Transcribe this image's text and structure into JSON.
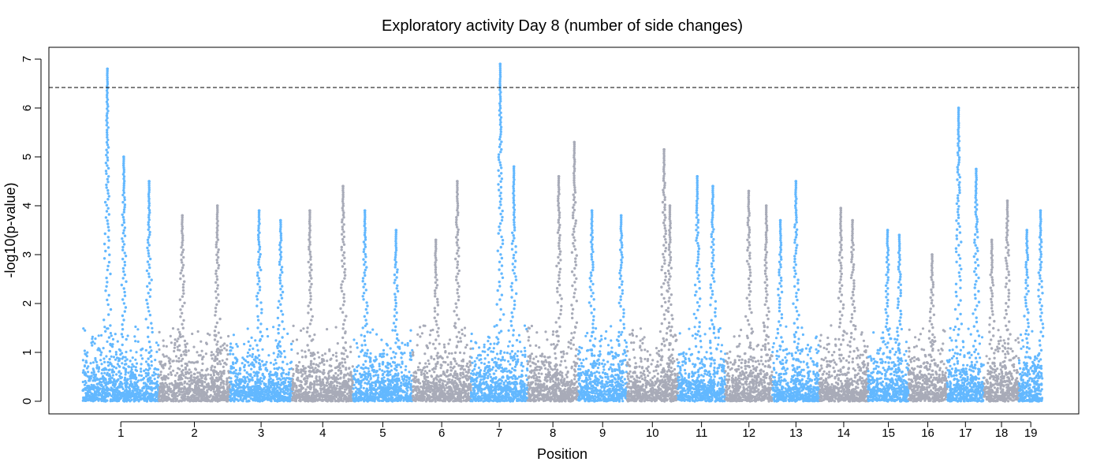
{
  "chart_data": {
    "type": "scatter",
    "subtype": "manhattan",
    "title": "Exploratory activity Day 8 (number of side changes)",
    "xlabel": "Position",
    "ylabel": "-log10(p-value)",
    "ylim": [
      0,
      7
    ],
    "yticks": [
      0,
      1,
      2,
      3,
      4,
      5,
      6,
      7
    ],
    "threshold": 6.42,
    "grid": false,
    "legend": "none",
    "colors": {
      "odd": "#63b8ff",
      "even": "#a8abb8",
      "threshold_line": "#000000"
    },
    "chromosomes": [
      {
        "label": "1",
        "start": 0,
        "end": 195,
        "color": "odd",
        "peaks": [
          {
            "pos": 63,
            "p": 6.8
          },
          {
            "pos": 105,
            "p": 5.0
          },
          {
            "pos": 170,
            "p": 4.5
          }
        ]
      },
      {
        "label": "2",
        "start": 195,
        "end": 377,
        "color": "even",
        "peaks": [
          {
            "pos": 60,
            "p": 3.8
          },
          {
            "pos": 150,
            "p": 4.0
          }
        ]
      },
      {
        "label": "3",
        "start": 377,
        "end": 537,
        "color": "odd",
        "peaks": [
          {
            "pos": 75,
            "p": 3.9
          },
          {
            "pos": 130,
            "p": 3.7
          }
        ]
      },
      {
        "label": "4",
        "start": 537,
        "end": 693,
        "color": "even",
        "peaks": [
          {
            "pos": 45,
            "p": 3.9
          },
          {
            "pos": 130,
            "p": 4.4
          }
        ]
      },
      {
        "label": "5",
        "start": 693,
        "end": 845,
        "color": "odd",
        "peaks": [
          {
            "pos": 30,
            "p": 3.9
          },
          {
            "pos": 110,
            "p": 3.5
          }
        ]
      },
      {
        "label": "6",
        "start": 845,
        "end": 995,
        "color": "even",
        "peaks": [
          {
            "pos": 115,
            "p": 4.5
          },
          {
            "pos": 60,
            "p": 3.3
          }
        ]
      },
      {
        "label": "7",
        "start": 995,
        "end": 1140,
        "color": "odd",
        "peaks": [
          {
            "pos": 75,
            "p": 6.9
          },
          {
            "pos": 110,
            "p": 4.8
          }
        ]
      },
      {
        "label": "8",
        "start": 1140,
        "end": 1270,
        "color": "even",
        "peaks": [
          {
            "pos": 80,
            "p": 4.6
          },
          {
            "pos": 120,
            "p": 5.3
          }
        ]
      },
      {
        "label": "9",
        "start": 1270,
        "end": 1395,
        "color": "odd",
        "peaks": [
          {
            "pos": 35,
            "p": 3.9
          },
          {
            "pos": 110,
            "p": 3.8
          }
        ]
      },
      {
        "label": "10",
        "start": 1395,
        "end": 1525,
        "color": "even",
        "peaks": [
          {
            "pos": 95,
            "p": 5.15
          },
          {
            "pos": 110,
            "p": 4.0
          }
        ]
      },
      {
        "label": "11",
        "start": 1525,
        "end": 1647,
        "color": "odd",
        "peaks": [
          {
            "pos": 50,
            "p": 4.6
          },
          {
            "pos": 90,
            "p": 4.4
          }
        ]
      },
      {
        "label": "12",
        "start": 1647,
        "end": 1768,
        "color": "even",
        "peaks": [
          {
            "pos": 60,
            "p": 4.3
          },
          {
            "pos": 105,
            "p": 4.0
          }
        ]
      },
      {
        "label": "13",
        "start": 1768,
        "end": 1888,
        "color": "odd",
        "peaks": [
          {
            "pos": 60,
            "p": 4.5
          },
          {
            "pos": 20,
            "p": 3.7
          }
        ]
      },
      {
        "label": "14",
        "start": 1888,
        "end": 2013,
        "color": "even",
        "peaks": [
          {
            "pos": 55,
            "p": 3.95
          },
          {
            "pos": 85,
            "p": 3.7
          }
        ]
      },
      {
        "label": "15",
        "start": 2013,
        "end": 2117,
        "color": "odd",
        "peaks": [
          {
            "pos": 50,
            "p": 3.5
          },
          {
            "pos": 80,
            "p": 3.4
          }
        ]
      },
      {
        "label": "16",
        "start": 2117,
        "end": 2215,
        "color": "even",
        "peaks": [
          {
            "pos": 60,
            "p": 3.0
          }
        ]
      },
      {
        "label": "17",
        "start": 2215,
        "end": 2310,
        "color": "odd",
        "peaks": [
          {
            "pos": 30,
            "p": 6.0
          },
          {
            "pos": 75,
            "p": 4.75
          }
        ]
      },
      {
        "label": "18",
        "start": 2310,
        "end": 2400,
        "color": "even",
        "peaks": [
          {
            "pos": 60,
            "p": 4.1
          },
          {
            "pos": 20,
            "p": 3.3
          }
        ]
      },
      {
        "label": "19",
        "start": 2400,
        "end": 2460,
        "color": "odd",
        "peaks": [
          {
            "pos": 55,
            "p": 3.9
          },
          {
            "pos": 20,
            "p": 3.5
          }
        ]
      }
    ]
  }
}
